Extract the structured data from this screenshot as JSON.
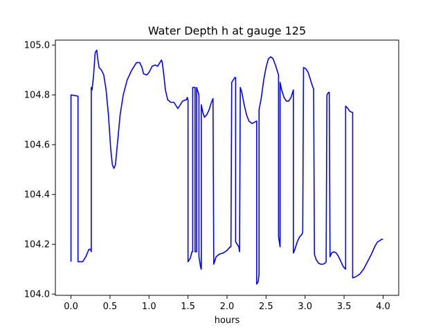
{
  "chart_data": {
    "type": "line",
    "title": "Water Depth h at gauge 125",
    "xlabel": "hours",
    "ylabel": "",
    "xlim": [
      -0.2,
      4.2
    ],
    "ylim": [
      103.995,
      105.02
    ],
    "xticks": [
      0.0,
      0.5,
      1.0,
      1.5,
      2.0,
      2.5,
      3.0,
      3.5,
      4.0
    ],
    "xtick_labels": [
      "0.0",
      "0.5",
      "1.0",
      "1.5",
      "2.0",
      "2.5",
      "3.0",
      "3.5",
      "4.0"
    ],
    "yticks": [
      104.0,
      104.2,
      104.4,
      104.6,
      104.8,
      105.0
    ],
    "ytick_labels": [
      "104.0",
      "104.2",
      "104.4",
      "104.6",
      "104.8",
      "105.0"
    ],
    "grid": false,
    "legend": "none",
    "series": [
      {
        "color": "#0000ff",
        "points": [
          [
            0.0,
            104.13
          ],
          [
            0.0,
            104.8
          ],
          [
            0.09,
            104.795
          ],
          [
            0.09,
            104.13
          ],
          [
            0.15,
            104.13
          ],
          [
            0.19,
            104.15
          ],
          [
            0.23,
            104.18
          ],
          [
            0.25,
            104.18
          ],
          [
            0.26,
            104.17
          ],
          [
            0.26,
            104.83
          ],
          [
            0.27,
            104.82
          ],
          [
            0.29,
            104.88
          ],
          [
            0.31,
            104.97
          ],
          [
            0.33,
            104.98
          ],
          [
            0.34,
            104.95
          ],
          [
            0.36,
            104.91
          ],
          [
            0.39,
            104.9
          ],
          [
            0.42,
            104.88
          ],
          [
            0.45,
            104.82
          ],
          [
            0.48,
            104.72
          ],
          [
            0.51,
            104.58
          ],
          [
            0.53,
            104.52
          ],
          [
            0.55,
            104.505
          ],
          [
            0.57,
            104.52
          ],
          [
            0.6,
            104.62
          ],
          [
            0.63,
            104.72
          ],
          [
            0.67,
            104.8
          ],
          [
            0.72,
            104.86
          ],
          [
            0.78,
            104.9
          ],
          [
            0.84,
            104.93
          ],
          [
            0.88,
            104.93
          ],
          [
            0.91,
            104.91
          ],
          [
            0.93,
            104.885
          ],
          [
            0.97,
            104.88
          ],
          [
            1.0,
            104.89
          ],
          [
            1.04,
            104.915
          ],
          [
            1.08,
            104.92
          ],
          [
            1.11,
            104.915
          ],
          [
            1.14,
            104.93
          ],
          [
            1.16,
            104.94
          ],
          [
            1.17,
            104.93
          ],
          [
            1.19,
            104.88
          ],
          [
            1.21,
            104.82
          ],
          [
            1.24,
            104.78
          ],
          [
            1.28,
            104.77
          ],
          [
            1.32,
            104.77
          ],
          [
            1.35,
            104.755
          ],
          [
            1.37,
            104.745
          ],
          [
            1.4,
            104.76
          ],
          [
            1.43,
            104.775
          ],
          [
            1.47,
            104.78
          ],
          [
            1.48,
            104.78
          ],
          [
            1.49,
            104.79
          ],
          [
            1.5,
            104.78
          ],
          [
            1.5,
            104.13
          ],
          [
            1.53,
            104.145
          ],
          [
            1.55,
            104.17
          ],
          [
            1.56,
            104.17
          ],
          [
            1.56,
            104.83
          ],
          [
            1.58,
            104.83
          ],
          [
            1.59,
            104.83
          ],
          [
            1.59,
            104.17
          ],
          [
            1.61,
            104.17
          ],
          [
            1.61,
            104.83
          ],
          [
            1.63,
            104.81
          ],
          [
            1.64,
            104.8
          ],
          [
            1.64,
            104.15
          ],
          [
            1.66,
            104.11
          ],
          [
            1.67,
            104.1
          ],
          [
            1.67,
            104.76
          ],
          [
            1.69,
            104.73
          ],
          [
            1.71,
            104.71
          ],
          [
            1.74,
            104.72
          ],
          [
            1.77,
            104.74
          ],
          [
            1.8,
            104.77
          ],
          [
            1.82,
            104.785
          ],
          [
            1.83,
            104.12
          ],
          [
            1.86,
            104.15
          ],
          [
            1.9,
            104.16
          ],
          [
            1.95,
            104.165
          ],
          [
            2.0,
            104.175
          ],
          [
            2.04,
            104.19
          ],
          [
            2.05,
            104.19
          ],
          [
            2.06,
            104.85
          ],
          [
            2.08,
            104.86
          ],
          [
            2.1,
            104.87
          ],
          [
            2.11,
            104.87
          ],
          [
            2.11,
            104.21
          ],
          [
            2.13,
            104.2
          ],
          [
            2.15,
            104.19
          ],
          [
            2.16,
            104.17
          ],
          [
            2.17,
            104.83
          ],
          [
            2.19,
            104.81
          ],
          [
            2.22,
            104.76
          ],
          [
            2.25,
            104.72
          ],
          [
            2.28,
            104.695
          ],
          [
            2.32,
            104.685
          ],
          [
            2.35,
            104.69
          ],
          [
            2.38,
            104.695
          ],
          [
            2.38,
            104.04
          ],
          [
            2.4,
            104.05
          ],
          [
            2.41,
            104.08
          ],
          [
            2.41,
            104.74
          ],
          [
            2.44,
            104.79
          ],
          [
            2.47,
            104.86
          ],
          [
            2.5,
            104.91
          ],
          [
            2.53,
            104.945
          ],
          [
            2.56,
            104.953
          ],
          [
            2.59,
            104.945
          ],
          [
            2.62,
            104.92
          ],
          [
            2.65,
            104.89
          ],
          [
            2.66,
            104.88
          ],
          [
            2.66,
            104.23
          ],
          [
            2.67,
            104.21
          ],
          [
            2.68,
            104.19
          ],
          [
            2.68,
            104.85
          ],
          [
            2.7,
            104.82
          ],
          [
            2.73,
            104.79
          ],
          [
            2.76,
            104.775
          ],
          [
            2.79,
            104.775
          ],
          [
            2.82,
            104.79
          ],
          [
            2.85,
            104.82
          ],
          [
            2.85,
            104.165
          ],
          [
            2.87,
            104.18
          ],
          [
            2.9,
            104.21
          ],
          [
            2.93,
            104.23
          ],
          [
            2.96,
            104.24
          ],
          [
            2.97,
            104.25
          ],
          [
            2.98,
            104.91
          ],
          [
            3.01,
            104.905
          ],
          [
            3.04,
            104.89
          ],
          [
            3.07,
            104.86
          ],
          [
            3.1,
            104.83
          ],
          [
            3.11,
            104.825
          ],
          [
            3.12,
            104.16
          ],
          [
            3.14,
            104.14
          ],
          [
            3.17,
            104.125
          ],
          [
            3.2,
            104.12
          ],
          [
            3.23,
            104.12
          ],
          [
            3.26,
            104.125
          ],
          [
            3.27,
            104.13
          ],
          [
            3.28,
            104.8
          ],
          [
            3.3,
            104.81
          ],
          [
            3.31,
            104.81
          ],
          [
            3.32,
            104.15
          ],
          [
            3.34,
            104.165
          ],
          [
            3.37,
            104.17
          ],
          [
            3.4,
            104.165
          ],
          [
            3.43,
            104.15
          ],
          [
            3.46,
            104.13
          ],
          [
            3.49,
            104.11
          ],
          [
            3.52,
            104.1
          ],
          [
            3.52,
            104.755
          ],
          [
            3.55,
            104.745
          ],
          [
            3.57,
            104.735
          ],
          [
            3.6,
            104.73
          ],
          [
            3.61,
            104.73
          ],
          [
            3.61,
            104.065
          ],
          [
            3.65,
            104.07
          ],
          [
            3.7,
            104.08
          ],
          [
            3.75,
            104.1
          ],
          [
            3.8,
            104.13
          ],
          [
            3.85,
            104.16
          ],
          [
            3.9,
            104.195
          ],
          [
            3.93,
            104.21
          ],
          [
            3.96,
            104.215
          ],
          [
            3.98,
            104.22
          ],
          [
            4.0,
            104.22
          ]
        ]
      }
    ]
  }
}
